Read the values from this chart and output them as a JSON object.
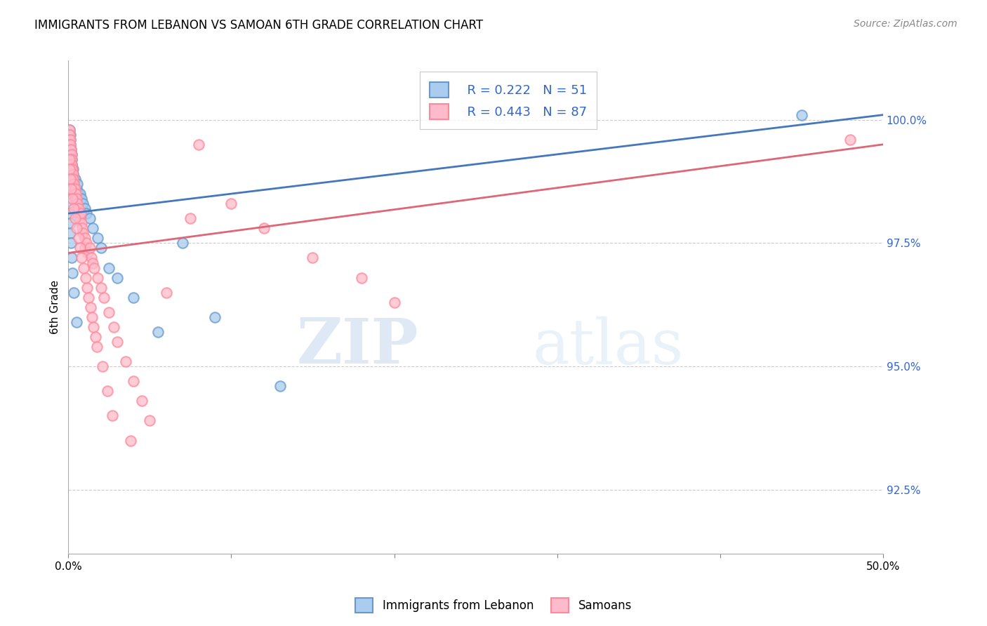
{
  "title": "IMMIGRANTS FROM LEBANON VS SAMOAN 6TH GRADE CORRELATION CHART",
  "source_text": "Source: ZipAtlas.com",
  "ylabel": "6th Grade",
  "xmin": 0.0,
  "xmax": 50.0,
  "ymin": 91.2,
  "ymax": 101.2,
  "yticks": [
    92.5,
    95.0,
    97.5,
    100.0
  ],
  "ytick_labels": [
    "92.5%",
    "95.0%",
    "97.5%",
    "100.0%"
  ],
  "xticks": [
    0.0,
    10.0,
    20.0,
    30.0,
    40.0,
    50.0
  ],
  "xtick_labels": [
    "0.0%",
    "",
    "",
    "",
    "",
    "50.0%"
  ],
  "legend_R1": "R = 0.222",
  "legend_N1": "N = 51",
  "legend_R2": "R = 0.443",
  "legend_N2": "N = 87",
  "series1_color_face": "#AACCEE",
  "series1_color_edge": "#6699CC",
  "series2_color_face": "#FFBBCC",
  "series2_color_edge": "#FF8899",
  "line1_color": "#4477BB",
  "line2_color": "#DD6677",
  "series1_label": "Immigrants from Lebanon",
  "series2_label": "Samoans",
  "watermark": "ZIPatlas",
  "blue_line_x0": 0.0,
  "blue_line_y0": 98.1,
  "blue_line_x1": 50.0,
  "blue_line_y1": 100.1,
  "pink_line_x0": 0.0,
  "pink_line_y0": 97.3,
  "pink_line_x1": 50.0,
  "pink_line_y1": 99.5,
  "blue_scatter_x": [
    0.05,
    0.05,
    0.05,
    0.07,
    0.08,
    0.1,
    0.1,
    0.1,
    0.12,
    0.15,
    0.15,
    0.18,
    0.2,
    0.2,
    0.22,
    0.25,
    0.28,
    0.3,
    0.3,
    0.35,
    0.4,
    0.5,
    0.55,
    0.6,
    0.7,
    0.8,
    0.9,
    1.0,
    1.1,
    1.3,
    1.5,
    1.8,
    2.0,
    2.5,
    3.0,
    4.0,
    5.5,
    7.0,
    9.0,
    13.0,
    0.05,
    0.06,
    0.08,
    0.1,
    0.12,
    0.15,
    0.2,
    0.25,
    0.35,
    0.5,
    45.0
  ],
  "blue_scatter_y": [
    99.8,
    99.6,
    99.4,
    99.5,
    99.3,
    99.7,
    99.5,
    99.2,
    99.6,
    99.4,
    99.1,
    99.3,
    99.2,
    99.0,
    99.1,
    99.0,
    98.9,
    99.0,
    98.8,
    98.7,
    98.8,
    98.6,
    98.7,
    98.5,
    98.5,
    98.4,
    98.3,
    98.2,
    98.1,
    98.0,
    97.8,
    97.6,
    97.4,
    97.0,
    96.8,
    96.4,
    95.7,
    97.5,
    96.0,
    94.6,
    98.5,
    98.3,
    98.1,
    97.9,
    97.7,
    97.5,
    97.2,
    96.9,
    96.5,
    95.9,
    100.1
  ],
  "pink_scatter_x": [
    0.03,
    0.05,
    0.05,
    0.07,
    0.08,
    0.08,
    0.1,
    0.1,
    0.12,
    0.12,
    0.15,
    0.15,
    0.18,
    0.2,
    0.2,
    0.22,
    0.25,
    0.25,
    0.28,
    0.3,
    0.3,
    0.35,
    0.35,
    0.4,
    0.4,
    0.45,
    0.5,
    0.5,
    0.55,
    0.6,
    0.65,
    0.7,
    0.75,
    0.8,
    0.85,
    0.9,
    1.0,
    1.0,
    1.1,
    1.2,
    1.3,
    1.4,
    1.5,
    1.6,
    1.8,
    2.0,
    2.2,
    2.5,
    2.8,
    3.0,
    3.5,
    4.0,
    4.5,
    5.0,
    6.0,
    7.5,
    8.0,
    10.0,
    12.0,
    15.0,
    18.0,
    20.0,
    0.06,
    0.09,
    0.13,
    0.17,
    0.23,
    0.32,
    0.42,
    0.52,
    0.62,
    0.72,
    0.82,
    0.92,
    1.05,
    1.15,
    1.25,
    1.35,
    1.45,
    1.55,
    1.65,
    1.75,
    2.1,
    2.4,
    2.7,
    3.8,
    48.0
  ],
  "pink_scatter_y": [
    99.5,
    99.8,
    99.6,
    99.7,
    99.5,
    99.3,
    99.6,
    99.4,
    99.5,
    99.2,
    99.4,
    99.1,
    99.3,
    99.2,
    99.0,
    99.1,
    99.0,
    98.8,
    98.9,
    98.8,
    98.6,
    98.7,
    98.5,
    98.6,
    98.4,
    98.5,
    98.4,
    98.2,
    98.3,
    98.1,
    98.2,
    98.0,
    98.1,
    97.9,
    97.8,
    97.7,
    97.6,
    97.4,
    97.5,
    97.3,
    97.4,
    97.2,
    97.1,
    97.0,
    96.8,
    96.6,
    96.4,
    96.1,
    95.8,
    95.5,
    95.1,
    94.7,
    94.3,
    93.9,
    96.5,
    98.0,
    99.5,
    98.3,
    97.8,
    97.2,
    96.8,
    96.3,
    99.2,
    99.0,
    98.8,
    98.6,
    98.4,
    98.2,
    98.0,
    97.8,
    97.6,
    97.4,
    97.2,
    97.0,
    96.8,
    96.6,
    96.4,
    96.2,
    96.0,
    95.8,
    95.6,
    95.4,
    95.0,
    94.5,
    94.0,
    93.5,
    99.6
  ]
}
